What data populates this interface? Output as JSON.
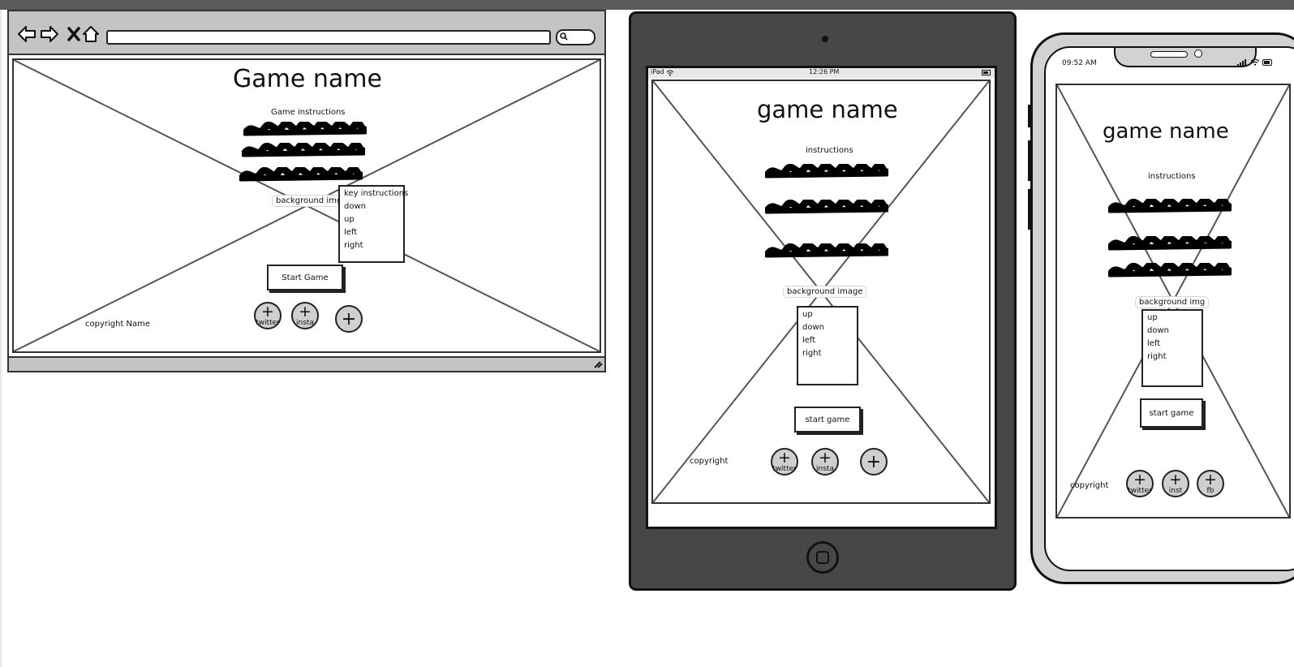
{
  "desktop": {
    "title": "Game name",
    "instructions_label": "Game instructions",
    "background_label": "background img",
    "key_box": {
      "heading": "key instructions",
      "items": [
        "down",
        "up",
        "left",
        "right"
      ]
    },
    "start_button": "Start Game",
    "copyright": "copyright Name",
    "social": [
      "twitter",
      "insta",
      ""
    ]
  },
  "tablet": {
    "status_left": "iPad",
    "status_time": "12:26 PM",
    "title": "game name",
    "instructions_label": "instructions",
    "background_label": "background image",
    "key_box": {
      "items": [
        "up",
        "down",
        "left",
        "right"
      ]
    },
    "start_button": "start game",
    "copyright": "copyright",
    "social": [
      "twitter",
      "insta",
      ""
    ]
  },
  "phone": {
    "status_time": "09:52 AM",
    "title": "game  name",
    "instructions_label": "instructions",
    "background_label": "background img",
    "key_box": {
      "items": [
        "up",
        "down",
        "left",
        "right"
      ]
    },
    "start_button": "start game",
    "copyright": "copyright",
    "social": [
      "twitter",
      "inst",
      "fb"
    ]
  }
}
